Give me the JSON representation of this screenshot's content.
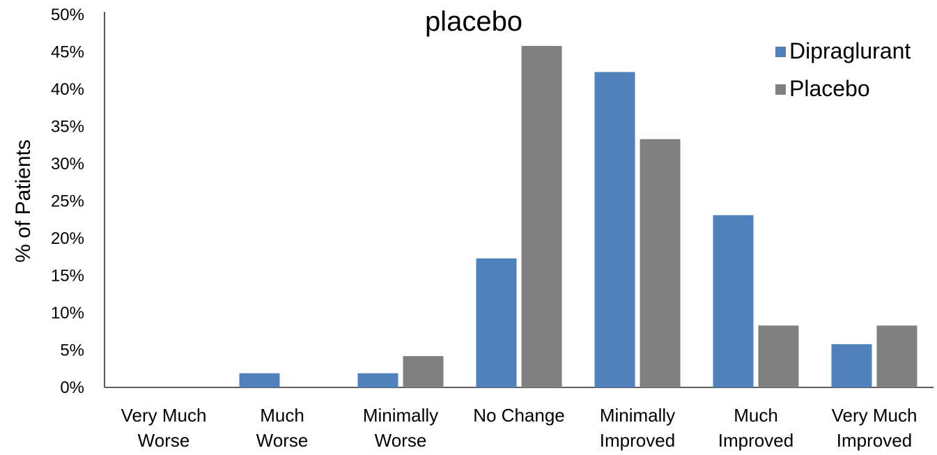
{
  "chart_data": {
    "type": "bar",
    "title": "placebo",
    "xlabel": "",
    "ylabel": "% of Patients",
    "ylim": [
      0,
      50
    ],
    "yticks": [
      "0%",
      "5%",
      "10%",
      "15%",
      "20%",
      "25%",
      "30%",
      "35%",
      "40%",
      "45%",
      "50%"
    ],
    "grid": false,
    "legend_position": "top-right",
    "categories": [
      [
        "Very Much",
        "Worse"
      ],
      [
        "Much",
        "Worse"
      ],
      [
        "Minimally",
        "Worse"
      ],
      [
        "No Change"
      ],
      [
        "Minimally",
        "Improved"
      ],
      [
        "Much",
        "Improved"
      ],
      [
        "Very Much",
        "Improved"
      ]
    ],
    "series": [
      {
        "name": "Dipraglurant",
        "color": "#4F81BD",
        "values": [
          0,
          1.9,
          1.9,
          17.3,
          42.3,
          23.1,
          5.8
        ]
      },
      {
        "name": "Placebo",
        "color": "#808080",
        "values": [
          0,
          0,
          4.2,
          45.8,
          33.3,
          8.3,
          8.3
        ]
      }
    ]
  }
}
